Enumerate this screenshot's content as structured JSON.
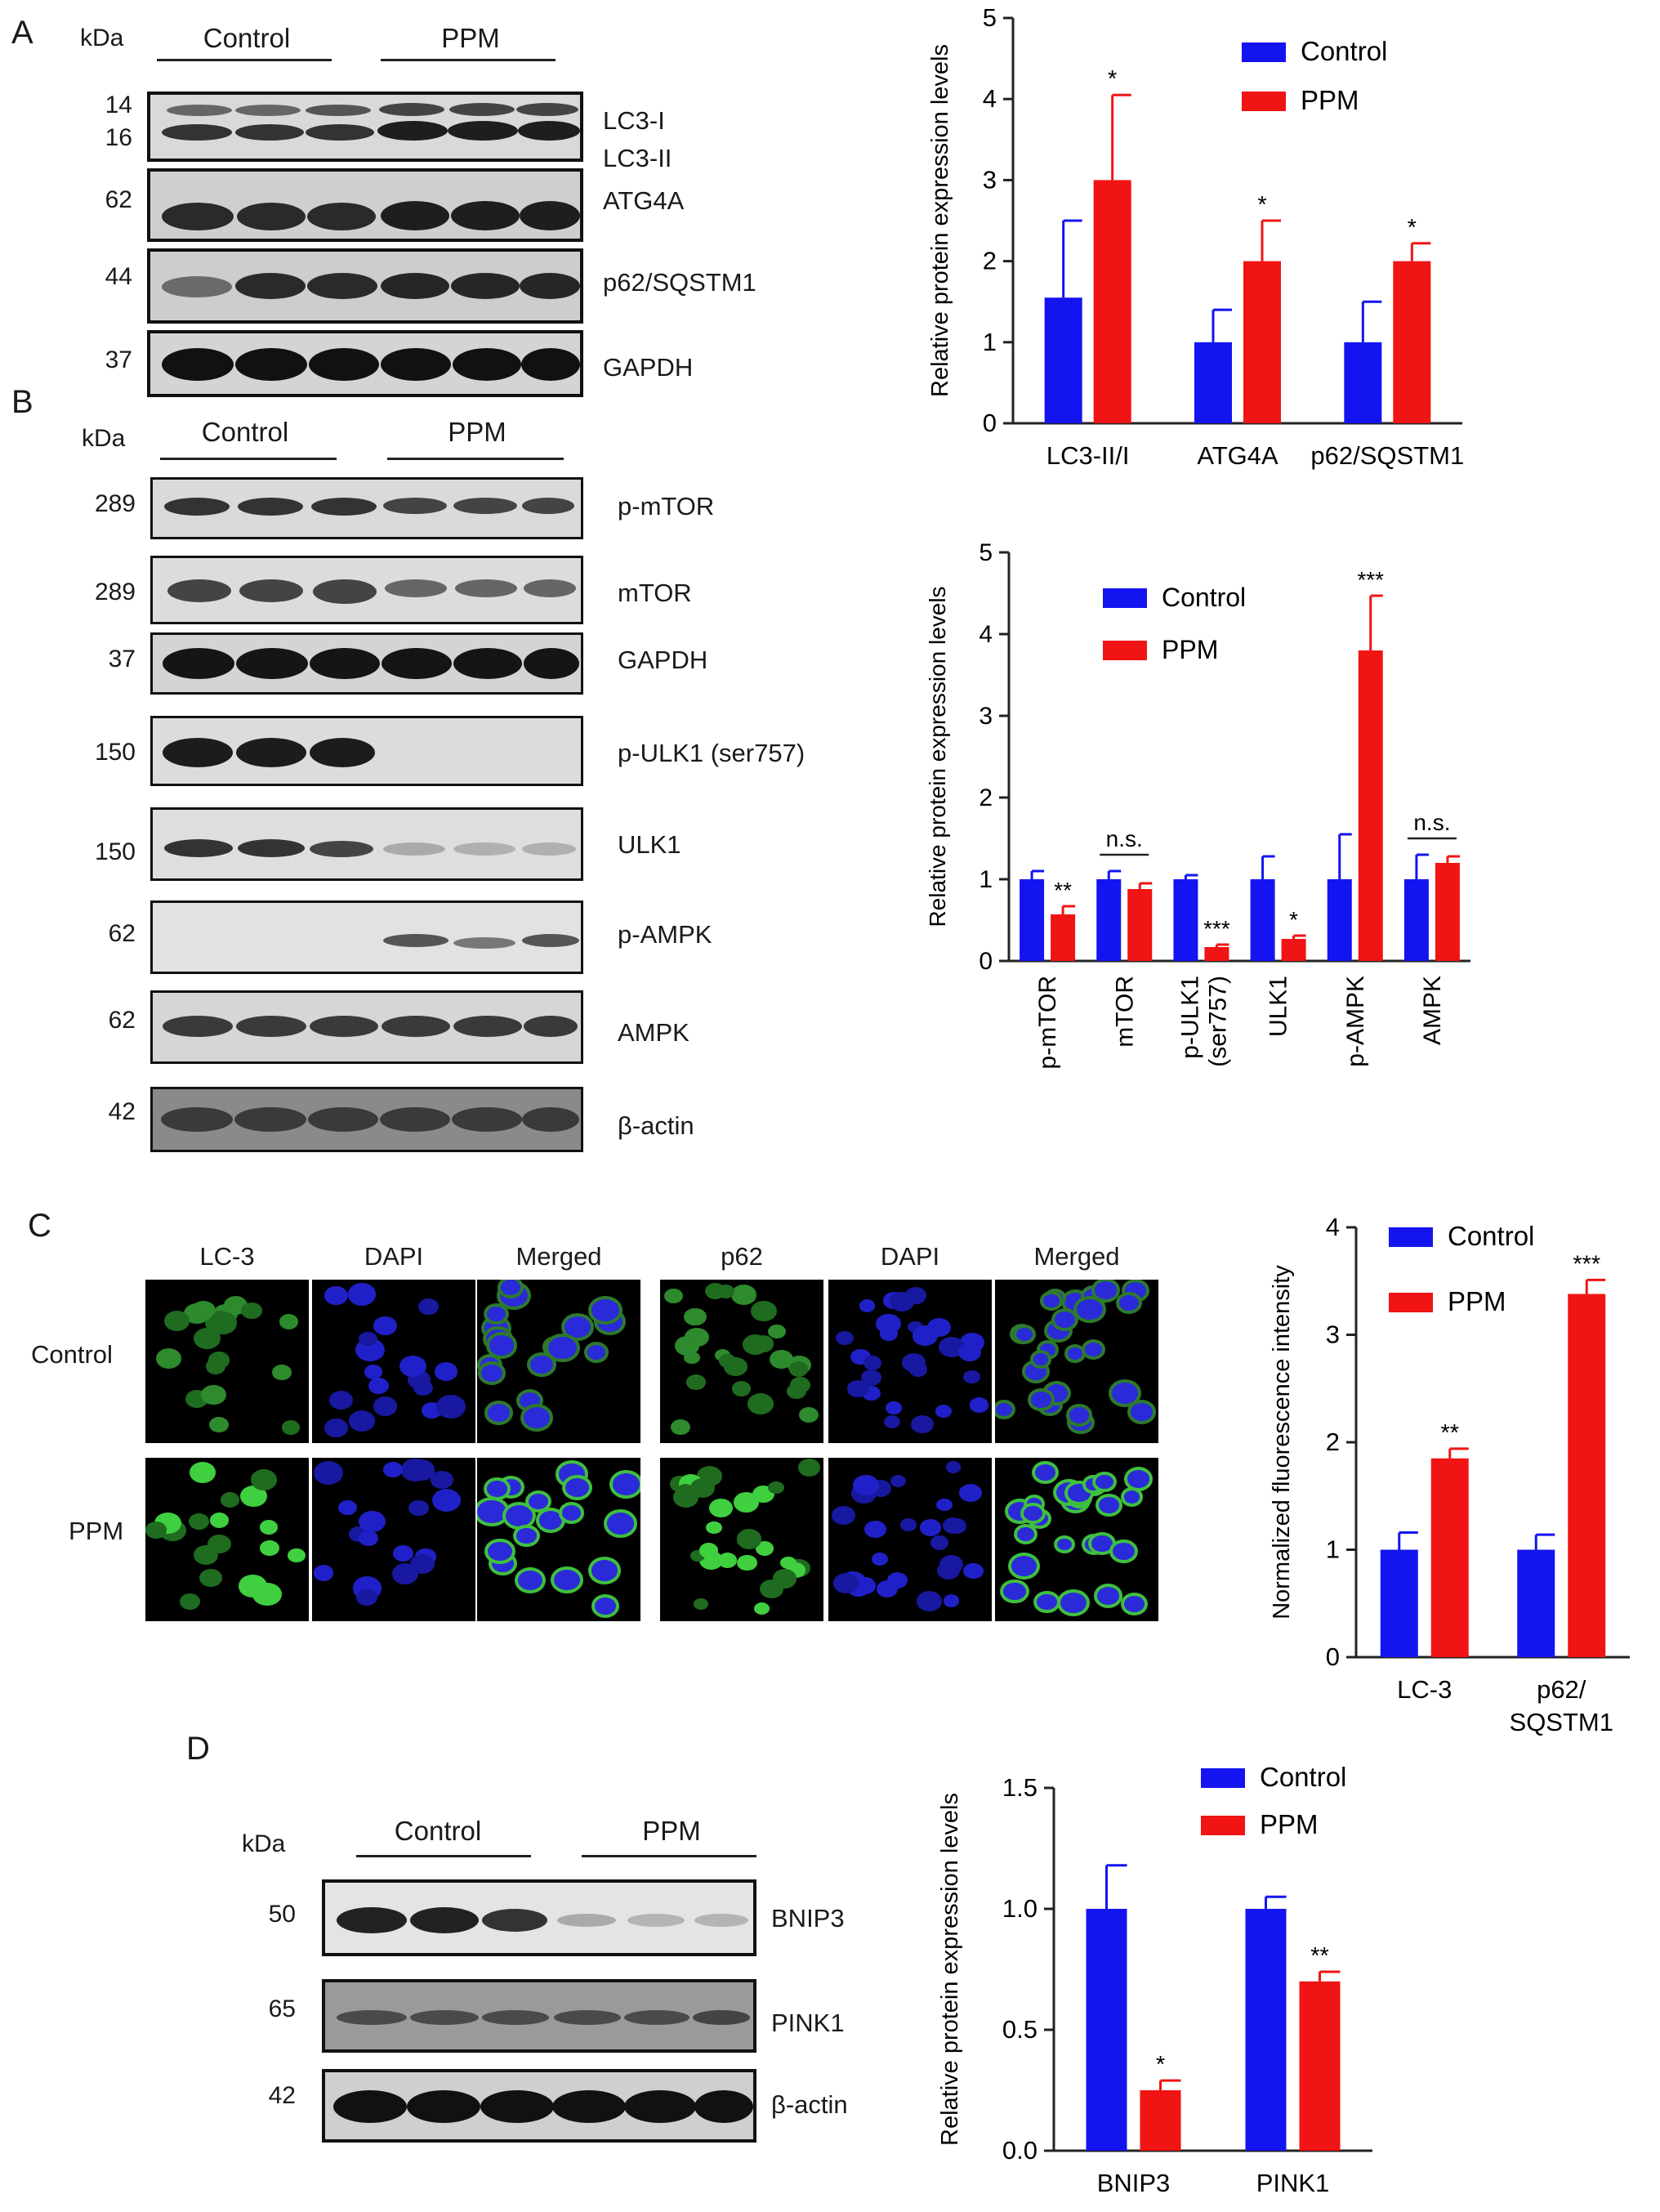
{
  "colors": {
    "control": "#1414f0",
    "ppm": "#f01414"
  },
  "panelA": {
    "letter": "A",
    "kda": "kDa",
    "groups": [
      "Control",
      "PPM"
    ],
    "blots": [
      {
        "mw": [
          "14",
          "16"
        ],
        "labels": [
          "LC3-I",
          "LC3-II"
        ]
      },
      {
        "mw": [
          "62"
        ],
        "labels": [
          "ATG4A"
        ]
      },
      {
        "mw": [
          "44"
        ],
        "labels": [
          "p62/SQSTM1"
        ]
      },
      {
        "mw": [
          "37"
        ],
        "labels": [
          "GAPDH"
        ]
      }
    ]
  },
  "panelB": {
    "letter": "B",
    "kda": "kDa",
    "groups": [
      "Control",
      "PPM"
    ],
    "blots": [
      {
        "mw": [
          "289"
        ],
        "labels": [
          "p-mTOR"
        ]
      },
      {
        "mw": [
          "289"
        ],
        "labels": [
          "mTOR"
        ]
      },
      {
        "mw": [
          "37"
        ],
        "labels": [
          "GAPDH"
        ]
      },
      {
        "mw": [
          "150"
        ],
        "labels": [
          "p-ULK1 (ser757)"
        ]
      },
      {
        "mw": [
          "150"
        ],
        "labels": [
          "ULK1"
        ]
      },
      {
        "mw": [
          "62"
        ],
        "labels": [
          "p-AMPK"
        ]
      },
      {
        "mw": [
          "62"
        ],
        "labels": [
          "AMPK"
        ]
      },
      {
        "mw": [
          "42"
        ],
        "labels": [
          "β-actin"
        ]
      }
    ]
  },
  "panelC": {
    "letter": "C",
    "rows": [
      "Control",
      "PPM"
    ],
    "cols": [
      "LC-3",
      "DAPI",
      "Merged",
      "p62",
      "DAPI",
      "Merged"
    ]
  },
  "panelD": {
    "letter": "D",
    "kda": "kDa",
    "groups": [
      "Control",
      "PPM"
    ],
    "blots": [
      {
        "mw": [
          "50"
        ],
        "labels": [
          "BNIP3"
        ]
      },
      {
        "mw": [
          "65"
        ],
        "labels": [
          "PINK1"
        ]
      },
      {
        "mw": [
          "42"
        ],
        "labels": [
          "β-actin"
        ]
      }
    ]
  },
  "chart_data": [
    {
      "type": "bar",
      "panel": "A",
      "ylabel": "Relative protein expression levels",
      "ylim": [
        0,
        5
      ],
      "yticks": [
        "0",
        "1",
        "2",
        "3",
        "4",
        "5"
      ],
      "categories": [
        "LC3-II/I",
        "ATG4A",
        "p62/SQSTM1"
      ],
      "legend": [
        "Control",
        "PPM"
      ],
      "legend_position": "top-right",
      "series": [
        {
          "name": "Control",
          "values": [
            1.55,
            1.0,
            1.0
          ],
          "errors": [
            0.95,
            0.4,
            0.5
          ]
        },
        {
          "name": "PPM",
          "values": [
            3.0,
            2.0,
            2.0
          ],
          "errors": [
            1.05,
            0.5,
            0.22
          ]
        }
      ],
      "annotations": [
        {
          "category": "LC3-II/I",
          "text": "*"
        },
        {
          "category": "ATG4A",
          "text": "*"
        },
        {
          "category": "p62/SQSTM1",
          "text": "*"
        }
      ]
    },
    {
      "type": "bar",
      "panel": "B",
      "ylabel": "Relative protein expression levels",
      "ylim": [
        0,
        5
      ],
      "yticks": [
        "0",
        "1",
        "2",
        "3",
        "4",
        "5"
      ],
      "categories": [
        "p-mTOR",
        "mTOR",
        "p-ULK1 (ser757)",
        "ULK1",
        "p-AMPK",
        "AMPK"
      ],
      "legend": [
        "Control",
        "PPM"
      ],
      "legend_position": "top-left",
      "series": [
        {
          "name": "Control",
          "values": [
            1.0,
            1.0,
            1.0,
            1.0,
            1.0,
            1.0
          ],
          "errors": [
            0.1,
            0.1,
            0.05,
            0.28,
            0.55,
            0.3
          ]
        },
        {
          "name": "PPM",
          "values": [
            0.57,
            0.88,
            0.17,
            0.27,
            3.8,
            1.2
          ],
          "errors": [
            0.1,
            0.07,
            0.03,
            0.04,
            0.67,
            0.08
          ]
        }
      ],
      "annotations": [
        {
          "category": "p-mTOR",
          "text": "**"
        },
        {
          "category": "mTOR",
          "text": "n.s."
        },
        {
          "category": "p-ULK1 (ser757)",
          "text": "***"
        },
        {
          "category": "ULK1",
          "text": "*"
        },
        {
          "category": "p-AMPK",
          "text": "***"
        },
        {
          "category": "AMPK",
          "text": "n.s."
        }
      ]
    },
    {
      "type": "bar",
      "panel": "C",
      "ylabel": "Normalized fluorescence intensity",
      "ylim": [
        0,
        4
      ],
      "yticks": [
        "0",
        "1",
        "2",
        "3",
        "4"
      ],
      "categories": [
        "LC-3",
        "p62/ SQSTM1"
      ],
      "legend": [
        "Control",
        "PPM"
      ],
      "legend_position": "top-right",
      "series": [
        {
          "name": "Control",
          "values": [
            1.0,
            1.0
          ],
          "errors": [
            0.16,
            0.14
          ]
        },
        {
          "name": "PPM",
          "values": [
            1.85,
            3.38
          ],
          "errors": [
            0.09,
            0.13
          ]
        }
      ],
      "annotations": [
        {
          "category": "LC-3",
          "text": "**"
        },
        {
          "category": "p62/ SQSTM1",
          "text": "***"
        }
      ]
    },
    {
      "type": "bar",
      "panel": "D",
      "ylabel": "Relative protein expression levels",
      "ylim": [
        0,
        1.5
      ],
      "yticks": [
        "0.0",
        "0.5",
        "1.0",
        "1.5"
      ],
      "categories": [
        "BNIP3",
        "PINK1"
      ],
      "legend": [
        "Control",
        "PPM"
      ],
      "legend_position": "top-right",
      "series": [
        {
          "name": "Control",
          "values": [
            1.0,
            1.0
          ],
          "errors": [
            0.18,
            0.05
          ]
        },
        {
          "name": "PPM",
          "values": [
            0.25,
            0.7
          ],
          "errors": [
            0.04,
            0.04
          ]
        }
      ],
      "annotations": [
        {
          "category": "BNIP3",
          "text": "*"
        },
        {
          "category": "PINK1",
          "text": "**"
        }
      ]
    }
  ]
}
